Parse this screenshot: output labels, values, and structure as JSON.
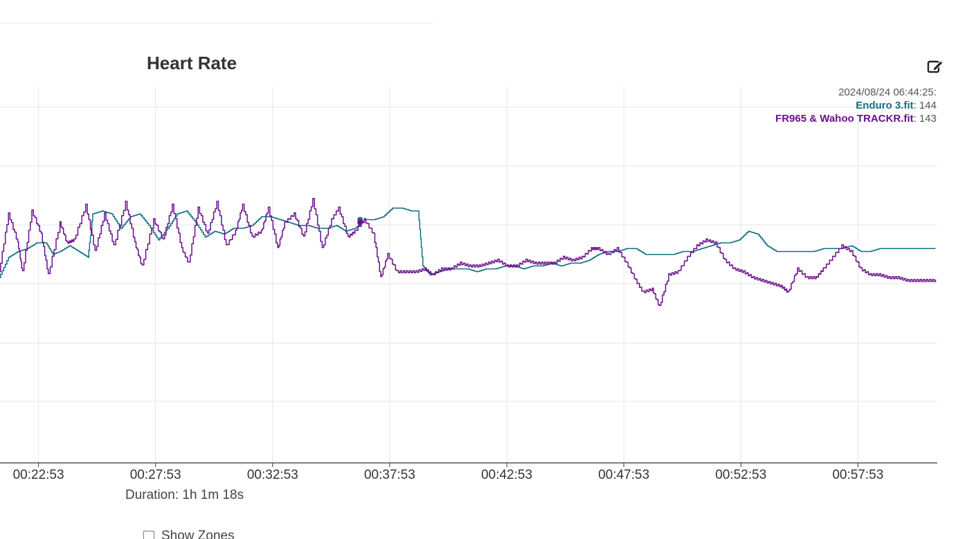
{
  "chart": {
    "title": "Heart Rate",
    "duration_label": "Duration: 1h 1m 18s",
    "show_zones_label": "Show Zones"
  },
  "tooltip": {
    "time": "2024/08/24 06:44:25:",
    "series1_name": "Enduro 3.fit",
    "series1_value": ": 144",
    "series2_name": "FR965 & Wahoo TRACKR.fit",
    "series2_value": ": 143"
  },
  "colors": {
    "series1": "#13707f",
    "series2": "#6a0f8e",
    "grid": "#e6e6e6",
    "axis": "#333333"
  },
  "icons": {
    "edit": "edit-square-pen-icon"
  },
  "chart_data": {
    "type": "line",
    "title": "Heart Rate",
    "x_ticks": [
      "00:22:53",
      "00:27:53",
      "00:32:53",
      "00:37:53",
      "00:42:53",
      "00:47:53",
      "00:52:53",
      "00:57:53"
    ],
    "x_range_minutes": [
      21.24,
      61.27
    ],
    "y_range": [
      60,
      190
    ],
    "grid": true,
    "legend": "tooltip top-right",
    "series": [
      {
        "name": "Enduro 3.fit",
        "color": "#13707f",
        "points": [
          [
            21.2,
            124
          ],
          [
            21.6,
            131
          ],
          [
            22.0,
            133
          ],
          [
            22.4,
            134
          ],
          [
            22.8,
            136
          ],
          [
            23.2,
            136
          ],
          [
            23.5,
            132
          ],
          [
            23.8,
            133
          ],
          [
            24.2,
            135
          ],
          [
            24.6,
            133
          ],
          [
            25.0,
            131
          ],
          [
            25.2,
            146
          ],
          [
            25.6,
            147
          ],
          [
            26.0,
            146
          ],
          [
            26.4,
            141
          ],
          [
            26.8,
            145
          ],
          [
            27.2,
            146
          ],
          [
            27.6,
            142
          ],
          [
            28.0,
            137
          ],
          [
            28.4,
            141
          ],
          [
            28.8,
            146
          ],
          [
            29.2,
            147
          ],
          [
            29.6,
            143
          ],
          [
            30.0,
            138
          ],
          [
            30.4,
            140
          ],
          [
            30.8,
            139
          ],
          [
            31.2,
            141
          ],
          [
            31.6,
            141
          ],
          [
            32.0,
            142
          ],
          [
            32.4,
            145
          ],
          [
            32.8,
            145
          ],
          [
            33.2,
            144
          ],
          [
            33.6,
            143
          ],
          [
            34.0,
            142
          ],
          [
            34.4,
            142
          ],
          [
            34.8,
            141
          ],
          [
            35.2,
            141
          ],
          [
            35.6,
            142
          ],
          [
            36.0,
            140
          ],
          [
            36.4,
            141
          ],
          [
            36.8,
            144
          ],
          [
            37.2,
            144
          ],
          [
            37.6,
            145
          ],
          [
            38.0,
            148
          ],
          [
            38.4,
            148
          ],
          [
            38.8,
            147
          ],
          [
            39.1,
            147
          ],
          [
            39.3,
            128
          ],
          [
            39.6,
            125
          ],
          [
            40.0,
            126
          ],
          [
            40.4,
            127
          ],
          [
            40.8,
            127
          ],
          [
            41.2,
            127
          ],
          [
            41.6,
            126
          ],
          [
            42.0,
            127
          ],
          [
            42.4,
            127
          ],
          [
            42.8,
            128
          ],
          [
            43.2,
            128
          ],
          [
            43.6,
            127
          ],
          [
            44.0,
            128
          ],
          [
            44.4,
            128
          ],
          [
            44.8,
            129
          ],
          [
            45.2,
            128
          ],
          [
            45.6,
            129
          ],
          [
            46.0,
            129
          ],
          [
            46.4,
            130
          ],
          [
            46.8,
            132
          ],
          [
            47.2,
            133
          ],
          [
            47.6,
            133
          ],
          [
            48.0,
            134
          ],
          [
            48.4,
            134
          ],
          [
            48.8,
            132
          ],
          [
            49.2,
            132
          ],
          [
            49.6,
            132
          ],
          [
            50.0,
            132
          ],
          [
            50.4,
            133
          ],
          [
            50.8,
            133
          ],
          [
            51.2,
            134
          ],
          [
            51.6,
            135
          ],
          [
            52.0,
            136
          ],
          [
            52.4,
            136
          ],
          [
            52.8,
            137
          ],
          [
            53.2,
            140
          ],
          [
            53.6,
            139
          ],
          [
            54.0,
            135
          ],
          [
            54.4,
            133
          ],
          [
            54.8,
            133
          ],
          [
            55.2,
            133
          ],
          [
            55.6,
            133
          ],
          [
            56.0,
            133
          ],
          [
            56.4,
            134
          ],
          [
            56.8,
            134
          ],
          [
            57.2,
            134
          ],
          [
            57.6,
            135
          ],
          [
            58.0,
            133
          ],
          [
            58.4,
            133
          ],
          [
            58.8,
            134
          ],
          [
            59.2,
            134
          ],
          [
            59.6,
            134
          ],
          [
            60.0,
            134
          ],
          [
            60.4,
            134
          ],
          [
            60.8,
            134
          ],
          [
            61.2,
            134
          ]
        ]
      },
      {
        "name": "FR965 & Wahoo TRACKR.fit",
        "color": "#6a0f8e",
        "points": [
          [
            21.2,
            126
          ],
          [
            21.6,
            146
          ],
          [
            22.0,
            136
          ],
          [
            22.2,
            126
          ],
          [
            22.6,
            147
          ],
          [
            23.0,
            139
          ],
          [
            23.3,
            125
          ],
          [
            23.8,
            143
          ],
          [
            24.1,
            136
          ],
          [
            24.4,
            137
          ],
          [
            24.9,
            149
          ],
          [
            25.3,
            133
          ],
          [
            25.7,
            146
          ],
          [
            26.1,
            135
          ],
          [
            26.6,
            150
          ],
          [
            27.0,
            136
          ],
          [
            27.3,
            128
          ],
          [
            27.8,
            144
          ],
          [
            28.2,
            137
          ],
          [
            28.6,
            149
          ],
          [
            29.0,
            134
          ],
          [
            29.3,
            129
          ],
          [
            29.7,
            148
          ],
          [
            30.1,
            139
          ],
          [
            30.5,
            150
          ],
          [
            30.9,
            135
          ],
          [
            31.3,
            140
          ],
          [
            31.6,
            149
          ],
          [
            32.0,
            138
          ],
          [
            32.4,
            140
          ],
          [
            32.7,
            148
          ],
          [
            33.1,
            134
          ],
          [
            33.4,
            143
          ],
          [
            33.8,
            146
          ],
          [
            34.2,
            138
          ],
          [
            34.6,
            151
          ],
          [
            35.0,
            134
          ],
          [
            35.4,
            144
          ],
          [
            35.7,
            148
          ],
          [
            36.1,
            138
          ],
          [
            36.4,
            140
          ],
          [
            36.8,
            144
          ],
          [
            37.2,
            139
          ],
          [
            37.5,
            124
          ],
          [
            37.8,
            132
          ],
          [
            38.2,
            126
          ],
          [
            38.6,
            126
          ],
          [
            39.0,
            126
          ],
          [
            39.4,
            127
          ],
          [
            39.7,
            125
          ],
          [
            40.1,
            127
          ],
          [
            40.5,
            127
          ],
          [
            40.9,
            129
          ],
          [
            41.3,
            128
          ],
          [
            41.7,
            128
          ],
          [
            42.1,
            129
          ],
          [
            42.5,
            130
          ],
          [
            42.9,
            128
          ],
          [
            43.3,
            128
          ],
          [
            43.7,
            130
          ],
          [
            44.1,
            129
          ],
          [
            44.5,
            129
          ],
          [
            44.9,
            129
          ],
          [
            45.3,
            131
          ],
          [
            45.7,
            130
          ],
          [
            46.1,
            131
          ],
          [
            46.5,
            134
          ],
          [
            46.8,
            134
          ],
          [
            47.2,
            132
          ],
          [
            47.6,
            134
          ],
          [
            48.0,
            129
          ],
          [
            48.4,
            123
          ],
          [
            48.7,
            119
          ],
          [
            49.1,
            120
          ],
          [
            49.4,
            114
          ],
          [
            49.8,
            125
          ],
          [
            50.2,
            126
          ],
          [
            50.6,
            131
          ],
          [
            51.0,
            135
          ],
          [
            51.4,
            137
          ],
          [
            51.8,
            136
          ],
          [
            52.2,
            130
          ],
          [
            52.6,
            127
          ],
          [
            53.0,
            126
          ],
          [
            53.4,
            124
          ],
          [
            53.8,
            123
          ],
          [
            54.2,
            122
          ],
          [
            54.6,
            121
          ],
          [
            54.9,
            119
          ],
          [
            55.3,
            127
          ],
          [
            55.7,
            124
          ],
          [
            56.1,
            124
          ],
          [
            56.4,
            127
          ],
          [
            56.8,
            131
          ],
          [
            57.2,
            135
          ],
          [
            57.6,
            133
          ],
          [
            58.0,
            127
          ],
          [
            58.4,
            125
          ],
          [
            58.8,
            125
          ],
          [
            59.2,
            124
          ],
          [
            59.6,
            124
          ],
          [
            60.0,
            123
          ],
          [
            60.4,
            123
          ],
          [
            60.8,
            123
          ],
          [
            61.2,
            123
          ]
        ]
      }
    ],
    "hover_marker": {
      "x": 36.62,
      "series1": 144,
      "series2": 143
    }
  }
}
